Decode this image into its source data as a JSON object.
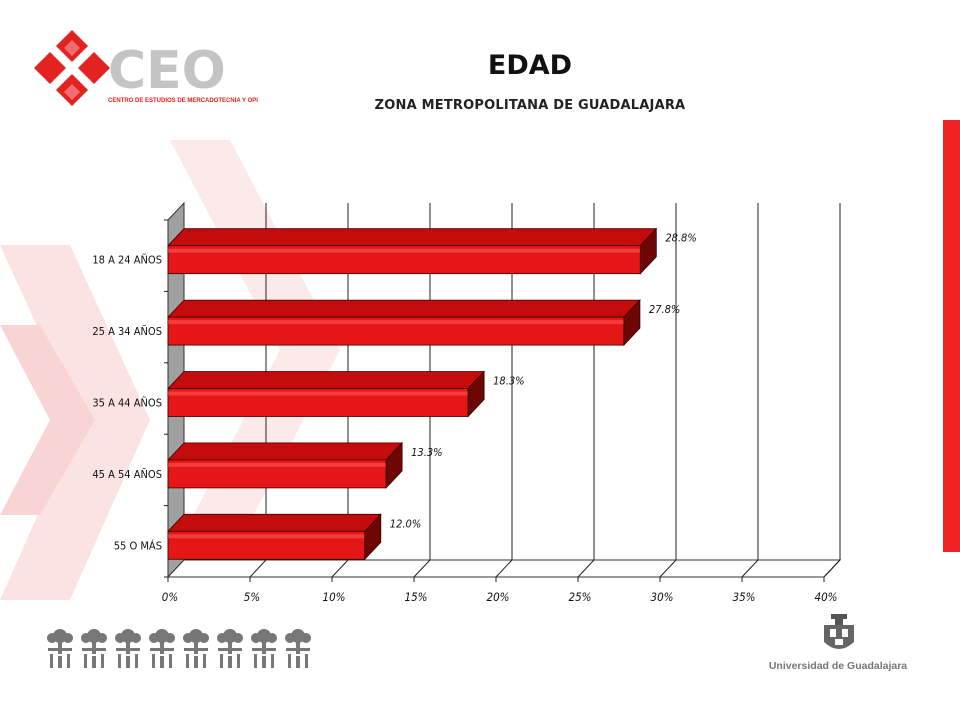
{
  "header": {
    "title": "EDAD",
    "subtitle": "ZONA METROPOLITANA DE GUADALAJARA"
  },
  "logo": {
    "name": "CEO",
    "tagline": "CENTRO DE ESTUDIOS DE MERCADOTECNIA Y OPINIÓN",
    "icon": "red-diamond-cluster-icon"
  },
  "footer": {
    "university": "Universidad de Guadalajara",
    "seal_icon": "university-seal-icon",
    "figures_icon": "tree-people-frieze-icon"
  },
  "colors": {
    "bar": "#e51616",
    "bar_top": "#c40c0c",
    "bar_side": "#6e0606",
    "accent": "#ee2222",
    "deco": "#fbe4e4"
  },
  "chart_data": {
    "type": "bar",
    "orientation": "horizontal",
    "categories": [
      "18 A 24 AÑOS",
      "25 A 34 AÑOS",
      "35 A 44 AÑOS",
      "45 A 54 AÑOS",
      "55 O MÁS"
    ],
    "values": [
      28.8,
      27.8,
      18.3,
      13.3,
      12.0
    ],
    "value_labels": [
      "28.8%",
      "27.8%",
      "18.3%",
      "13.3%",
      "12.0%"
    ],
    "xlim": [
      0,
      40
    ],
    "x_ticks": [
      "0%",
      "5%",
      "10%",
      "15%",
      "20%",
      "25%",
      "30%",
      "35%",
      "40%"
    ],
    "grid": true,
    "style": "3d"
  }
}
